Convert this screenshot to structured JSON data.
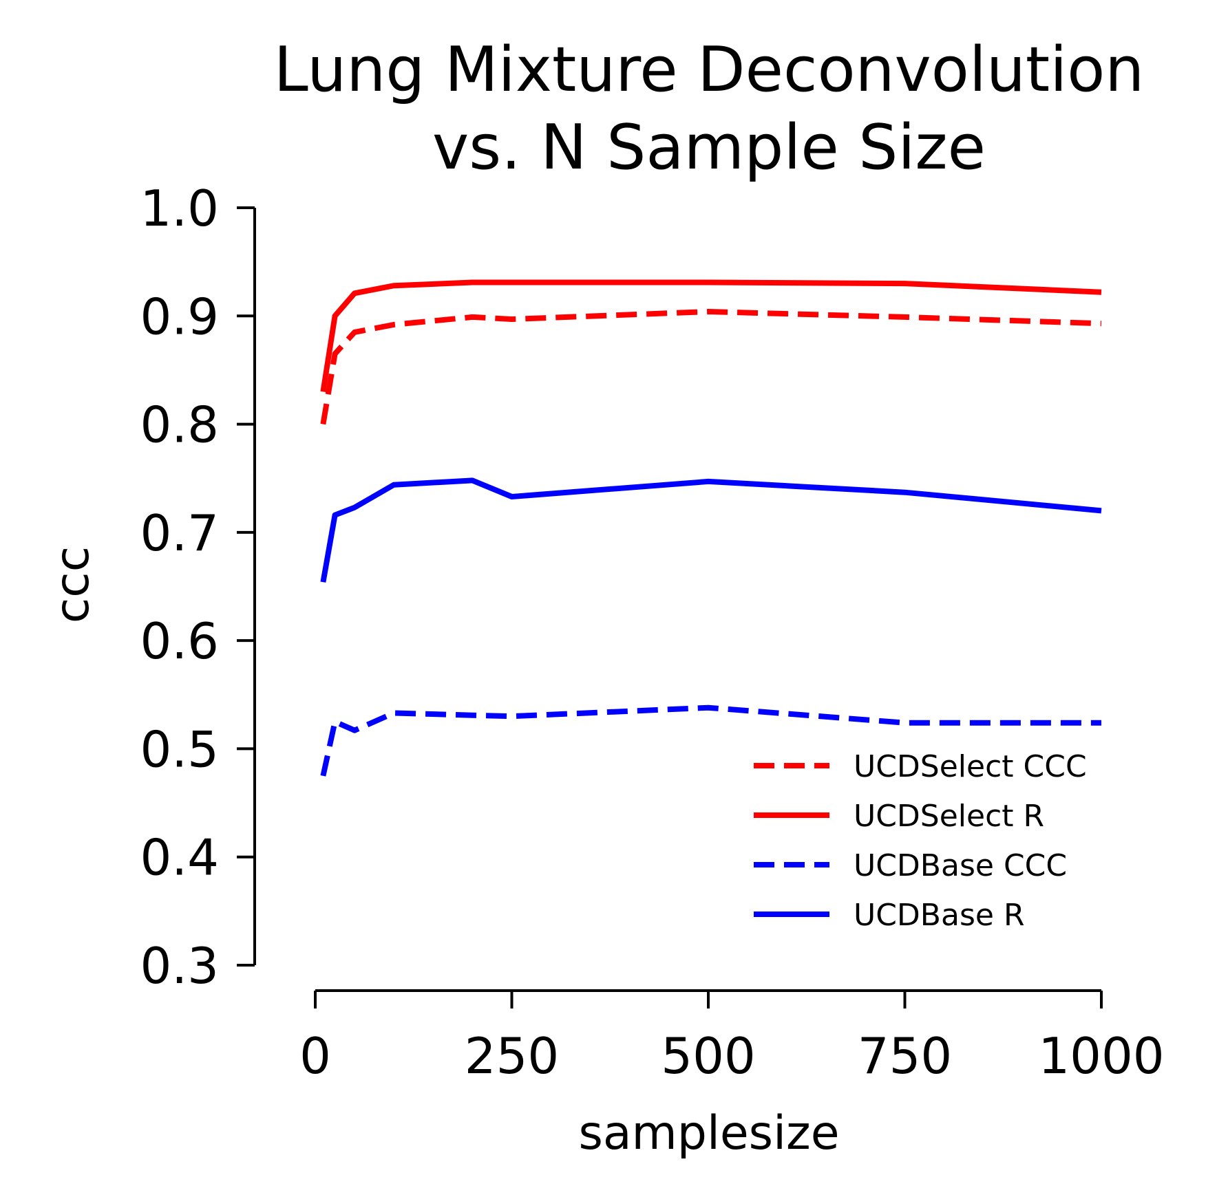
{
  "chart_data": {
    "type": "line",
    "title": [
      "Lung Mixture Deconvolution",
      "vs. N Sample Size"
    ],
    "xlabel": "samplesize",
    "ylabel": "ccc",
    "xlim": [
      0,
      1000
    ],
    "ylim": [
      0.3,
      1.0
    ],
    "xticks": [
      0,
      250,
      500,
      750,
      1000
    ],
    "xtick_labels": [
      "0",
      "250",
      "500",
      "750",
      "1000"
    ],
    "yticks": [
      0.3,
      0.4,
      0.5,
      0.6,
      0.7,
      0.8,
      0.9,
      1.0
    ],
    "ytick_labels": [
      "0.3",
      "0.4",
      "0.5",
      "0.6",
      "0.7",
      "0.8",
      "0.9",
      "1.0"
    ],
    "grid": false,
    "legend_position": "lower-right",
    "x": [
      10,
      25,
      50,
      100,
      200,
      250,
      500,
      750,
      1000
    ],
    "series": [
      {
        "name": "UCDSelect CCC",
        "color": "#ff0000",
        "style": "dashed",
        "values": [
          0.8,
          0.865,
          0.885,
          0.892,
          0.899,
          0.897,
          0.904,
          0.899,
          0.893
        ]
      },
      {
        "name": "UCDSelect R",
        "color": "#ff0000",
        "style": "solid",
        "values": [
          0.83,
          0.9,
          0.921,
          0.928,
          0.931,
          0.931,
          0.931,
          0.93,
          0.922
        ]
      },
      {
        "name": "UCDBase CCC",
        "color": "#0000ff",
        "style": "dashed",
        "values": [
          0.475,
          0.525,
          0.517,
          0.533,
          0.531,
          0.53,
          0.538,
          0.524,
          0.524
        ]
      },
      {
        "name": "UCDBase R",
        "color": "#0000ff",
        "style": "solid",
        "values": [
          0.654,
          0.716,
          0.723,
          0.744,
          0.748,
          0.733,
          0.747,
          0.737,
          0.72
        ]
      }
    ]
  }
}
